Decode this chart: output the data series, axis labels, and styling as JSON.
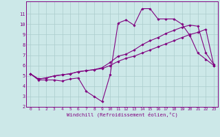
{
  "xlabel": "Windchill (Refroidissement éolien,°C)",
  "x": [
    0,
    1,
    2,
    3,
    4,
    5,
    6,
    7,
    8,
    9,
    10,
    11,
    12,
    13,
    14,
    15,
    16,
    17,
    18,
    19,
    20,
    21,
    22,
    23
  ],
  "line1": [
    5.2,
    4.6,
    4.6,
    4.6,
    4.5,
    4.7,
    4.8,
    3.5,
    3.0,
    2.5,
    5.1,
    10.1,
    10.4,
    9.9,
    11.5,
    11.5,
    10.5,
    10.5,
    10.5,
    10.0,
    8.9,
    7.2,
    6.6,
    6.0
  ],
  "line2": [
    5.2,
    4.7,
    4.8,
    5.0,
    5.1,
    5.2,
    5.4,
    5.5,
    5.6,
    5.8,
    6.3,
    6.9,
    7.1,
    7.5,
    8.0,
    8.4,
    8.7,
    9.1,
    9.4,
    9.7,
    9.9,
    9.8,
    7.2,
    6.1
  ],
  "line3": [
    5.2,
    4.7,
    4.8,
    5.0,
    5.1,
    5.2,
    5.4,
    5.5,
    5.6,
    5.7,
    6.0,
    6.4,
    6.7,
    6.9,
    7.2,
    7.5,
    7.8,
    8.1,
    8.4,
    8.7,
    9.0,
    9.2,
    9.5,
    6.0
  ],
  "line_color": "#800080",
  "bg_color": "#cce8e8",
  "grid_color": "#aacccc",
  "axes_color": "#800080",
  "ylim_min": 2,
  "ylim_max": 12,
  "xlim_min": -0.5,
  "xlim_max": 23.5,
  "yticks": [
    2,
    3,
    4,
    5,
    6,
    7,
    8,
    9,
    10,
    11
  ],
  "xticks": [
    0,
    1,
    2,
    3,
    4,
    5,
    6,
    7,
    8,
    9,
    10,
    11,
    12,
    13,
    14,
    15,
    16,
    17,
    18,
    19,
    20,
    21,
    22,
    23
  ]
}
